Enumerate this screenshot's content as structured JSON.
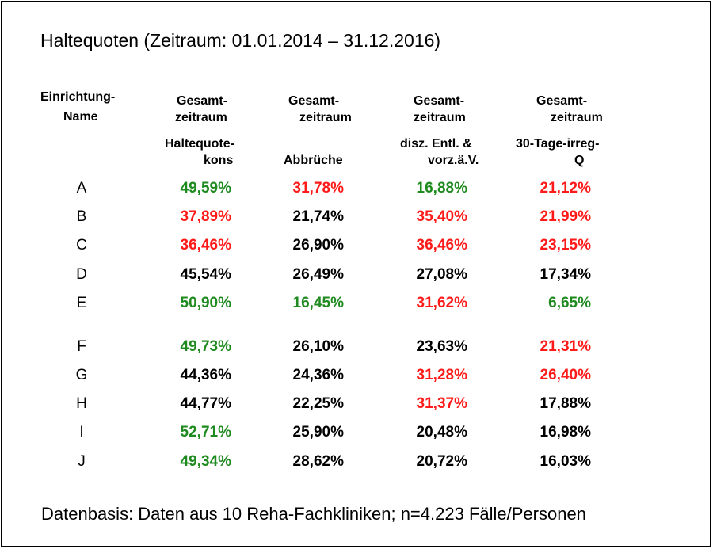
{
  "title": "Haltequoten (Zeitraum: 01.01.2014 – 31.12.2016)",
  "footer": "Datenbasis: Daten aus 10 Reha-Fachkliniken; n=4.223 Fälle/Personen",
  "headers": {
    "col0": {
      "line1": "Einrichtung-",
      "line2": "Name"
    },
    "col1": {
      "line1": "Gesamt-",
      "line2": "zeitraum",
      "line3": "Haltequote-",
      "line4": "kons"
    },
    "col2": {
      "line1": "Gesamt-",
      "line2": "zeitraum",
      "line3": "Abbrüche"
    },
    "col3": {
      "line1": "Gesamt-",
      "line2": "zeitraum",
      "line3": "disz. Entl. &",
      "line4": "vorz.ä.V."
    },
    "col4": {
      "line1": "Gesamt-",
      "line2": "zeitraum",
      "line3": "30-Tage-irreg-",
      "line4": "Q"
    }
  },
  "colors": {
    "green": "#1f8a1f",
    "red": "#ff1a1a",
    "black": "#000000"
  },
  "rows": [
    {
      "name": "A",
      "values": [
        "49,59%",
        "31,78%",
        "16,88%",
        "21,12%"
      ],
      "colors": [
        "green",
        "red",
        "green",
        "red"
      ]
    },
    {
      "name": "B",
      "values": [
        "37,89%",
        "21,74%",
        "35,40%",
        "21,99%"
      ],
      "colors": [
        "red",
        "black",
        "red",
        "red"
      ]
    },
    {
      "name": "C",
      "values": [
        "36,46%",
        "26,90%",
        "36,46%",
        "23,15%"
      ],
      "colors": [
        "red",
        "black",
        "red",
        "red"
      ]
    },
    {
      "name": "D",
      "values": [
        "45,54%",
        "26,49%",
        "27,08%",
        "17,34%"
      ],
      "colors": [
        "black",
        "black",
        "black",
        "black"
      ]
    },
    {
      "name": "E",
      "values": [
        "50,90%",
        "16,45%",
        "31,62%",
        "6,65%"
      ],
      "colors": [
        "green",
        "green",
        "red",
        "green"
      ]
    },
    {
      "name": "F",
      "values": [
        "49,73%",
        "26,10%",
        "23,63%",
        "21,31%"
      ],
      "colors": [
        "green",
        "black",
        "black",
        "red"
      ]
    },
    {
      "name": "G",
      "values": [
        "44,36%",
        "24,36%",
        "31,28%",
        "26,40%"
      ],
      "colors": [
        "black",
        "black",
        "red",
        "red"
      ]
    },
    {
      "name": "H",
      "values": [
        "44,77%",
        "22,25%",
        "31,37%",
        "17,88%"
      ],
      "colors": [
        "black",
        "black",
        "red",
        "black"
      ]
    },
    {
      "name": "I",
      "values": [
        "52,71%",
        "25,90%",
        "20,48%",
        "16,98%"
      ],
      "colors": [
        "green",
        "black",
        "black",
        "black"
      ]
    },
    {
      "name": "J",
      "values": [
        "49,34%",
        "28,62%",
        "20,72%",
        "16,03%"
      ],
      "colors": [
        "green",
        "black",
        "black",
        "black"
      ]
    }
  ]
}
